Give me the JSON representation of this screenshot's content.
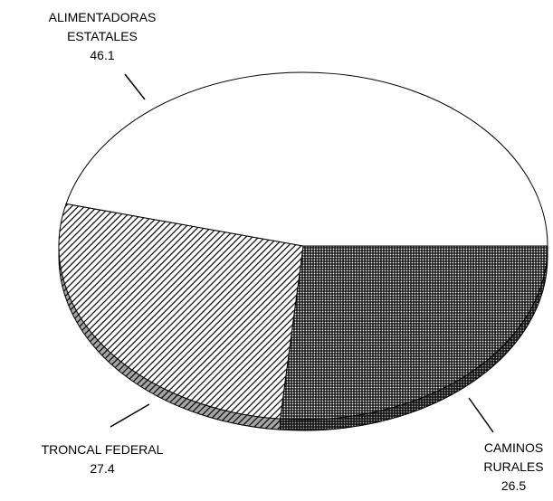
{
  "chart_data": {
    "type": "pie",
    "categories": [
      "CAMINOS RURALES",
      "TRONCAL FEDERAL",
      "ALIMENTADORAS ESTATALES"
    ],
    "values": [
      26.5,
      27.4,
      46.1
    ]
  }
}
